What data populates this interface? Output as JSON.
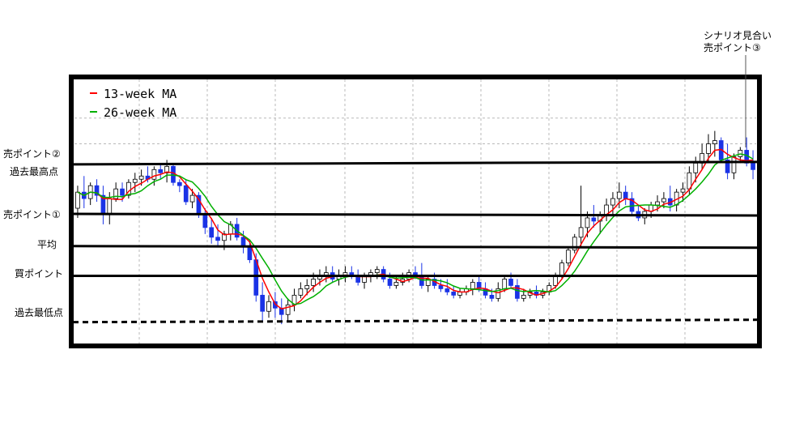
{
  "chart_data": {
    "type": "candlestick",
    "title": "",
    "xlabel": "",
    "ylabel": "",
    "grid": true,
    "legend_position": "top-left",
    "colors": {
      "up": "#ffffff",
      "up_outline": "#000000",
      "down": "#1a33e6",
      "ma13": "#ff0000",
      "ma26": "#00b000"
    },
    "legend": [
      {
        "name": "13-week MA",
        "color": "#ff0000"
      },
      {
        "name": "26-week MA",
        "color": "#00b000"
      }
    ],
    "levels": [
      {
        "label": "売ポイント②",
        "value": 92
      },
      {
        "label": "過去最高点",
        "value": 86
      },
      {
        "label": "売ポイント①",
        "value": 70
      },
      {
        "label": "平均",
        "value": 60
      },
      {
        "label": "買ポイント",
        "value": 51
      },
      {
        "label": "過去最低点",
        "value": 37
      }
    ],
    "annotation": {
      "line1": "シナリオ見合い",
      "line2": "売ポイント③"
    },
    "ohlc": [
      [
        72,
        79,
        69,
        77
      ],
      [
        77,
        82,
        72,
        75
      ],
      [
        75,
        80,
        73,
        79
      ],
      [
        79,
        81,
        74,
        76
      ],
      [
        76,
        79,
        67,
        70
      ],
      [
        70,
        77,
        67,
        75
      ],
      [
        75,
        80,
        74,
        78
      ],
      [
        78,
        80,
        74,
        76
      ],
      [
        76,
        81,
        75,
        80
      ],
      [
        80,
        83,
        77,
        81
      ],
      [
        81,
        84,
        79,
        82
      ],
      [
        82,
        85,
        80,
        81
      ],
      [
        81,
        85,
        79,
        84
      ],
      [
        84,
        86,
        81,
        83
      ],
      [
        83,
        87,
        80,
        85
      ],
      [
        85,
        86,
        79,
        80
      ],
      [
        80,
        81,
        77,
        79
      ],
      [
        79,
        81,
        73,
        74
      ],
      [
        74,
        78,
        72,
        76
      ],
      [
        76,
        77,
        69,
        70
      ],
      [
        70,
        72,
        64,
        66
      ],
      [
        66,
        69,
        61,
        63
      ],
      [
        63,
        67,
        60,
        62
      ],
      [
        62,
        65,
        59,
        64
      ],
      [
        64,
        68,
        62,
        67
      ],
      [
        67,
        69,
        62,
        63
      ],
      [
        63,
        65,
        58,
        60
      ],
      [
        60,
        62,
        55,
        56
      ],
      [
        56,
        58,
        43,
        45
      ],
      [
        45,
        49,
        37,
        40
      ],
      [
        40,
        45,
        38,
        43
      ],
      [
        43,
        46,
        38,
        41
      ],
      [
        41,
        44,
        36,
        39
      ],
      [
        39,
        44,
        37,
        42
      ],
      [
        42,
        47,
        40,
        45
      ],
      [
        45,
        49,
        44,
        47
      ],
      [
        47,
        50,
        45,
        48
      ],
      [
        48,
        52,
        46,
        50
      ],
      [
        50,
        53,
        48,
        51
      ],
      [
        51,
        54,
        49,
        52
      ],
      [
        52,
        54,
        49,
        50
      ],
      [
        50,
        53,
        48,
        51
      ],
      [
        51,
        54,
        49,
        52
      ],
      [
        52,
        54,
        50,
        51
      ],
      [
        51,
        53,
        48,
        49
      ],
      [
        49,
        52,
        47,
        51
      ],
      [
        51,
        53,
        49,
        52
      ],
      [
        52,
        54,
        50,
        53
      ],
      [
        53,
        54,
        49,
        50
      ],
      [
        50,
        52,
        47,
        48
      ],
      [
        48,
        51,
        47,
        49
      ],
      [
        49,
        52,
        48,
        50
      ],
      [
        50,
        53,
        49,
        52
      ],
      [
        52,
        54,
        50,
        51
      ],
      [
        51,
        55,
        47,
        48
      ],
      [
        48,
        51,
        46,
        50
      ],
      [
        50,
        52,
        47,
        48
      ],
      [
        48,
        50,
        46,
        47
      ],
      [
        47,
        50,
        45,
        46
      ],
      [
        46,
        48,
        44,
        45
      ],
      [
        45,
        47,
        44,
        46
      ],
      [
        46,
        48,
        45,
        47
      ],
      [
        47,
        50,
        45,
        49
      ],
      [
        49,
        51,
        46,
        47
      ],
      [
        47,
        49,
        44,
        45
      ],
      [
        45,
        47,
        43,
        44
      ],
      [
        44,
        49,
        43,
        47
      ],
      [
        47,
        51,
        46,
        50
      ],
      [
        50,
        52,
        47,
        48
      ],
      [
        48,
        50,
        43,
        44
      ],
      [
        44,
        47,
        43,
        45
      ],
      [
        45,
        47,
        44,
        46
      ],
      [
        46,
        48,
        44,
        45
      ],
      [
        45,
        47,
        44,
        46
      ],
      [
        46,
        49,
        45,
        48
      ],
      [
        48,
        52,
        47,
        51
      ],
      [
        51,
        56,
        50,
        55
      ],
      [
        55,
        60,
        54,
        59
      ],
      [
        59,
        64,
        58,
        63
      ],
      [
        63,
        79,
        60,
        66
      ],
      [
        66,
        71,
        63,
        69
      ],
      [
        69,
        73,
        66,
        68
      ],
      [
        68,
        71,
        64,
        70
      ],
      [
        70,
        75,
        68,
        73
      ],
      [
        73,
        77,
        70,
        75
      ],
      [
        75,
        80,
        72,
        77
      ],
      [
        77,
        79,
        73,
        75
      ],
      [
        75,
        77,
        70,
        71
      ],
      [
        71,
        73,
        68,
        69
      ],
      [
        69,
        72,
        67,
        71
      ],
      [
        71,
        74,
        69,
        73
      ],
      [
        73,
        76,
        71,
        74
      ],
      [
        74,
        77,
        72,
        75
      ],
      [
        75,
        79,
        71,
        73
      ],
      [
        73,
        78,
        71,
        77
      ],
      [
        77,
        80,
        74,
        78
      ],
      [
        78,
        85,
        76,
        83
      ],
      [
        83,
        88,
        80,
        86
      ],
      [
        86,
        92,
        84,
        89
      ],
      [
        89,
        95,
        86,
        92
      ],
      [
        92,
        96,
        88,
        93
      ],
      [
        93,
        94,
        86,
        87
      ],
      [
        87,
        92,
        81,
        83
      ],
      [
        83,
        89,
        81,
        88
      ],
      [
        88,
        91,
        86,
        90
      ],
      [
        90,
        94,
        85,
        86
      ],
      [
        86,
        90,
        81,
        84
      ]
    ]
  }
}
